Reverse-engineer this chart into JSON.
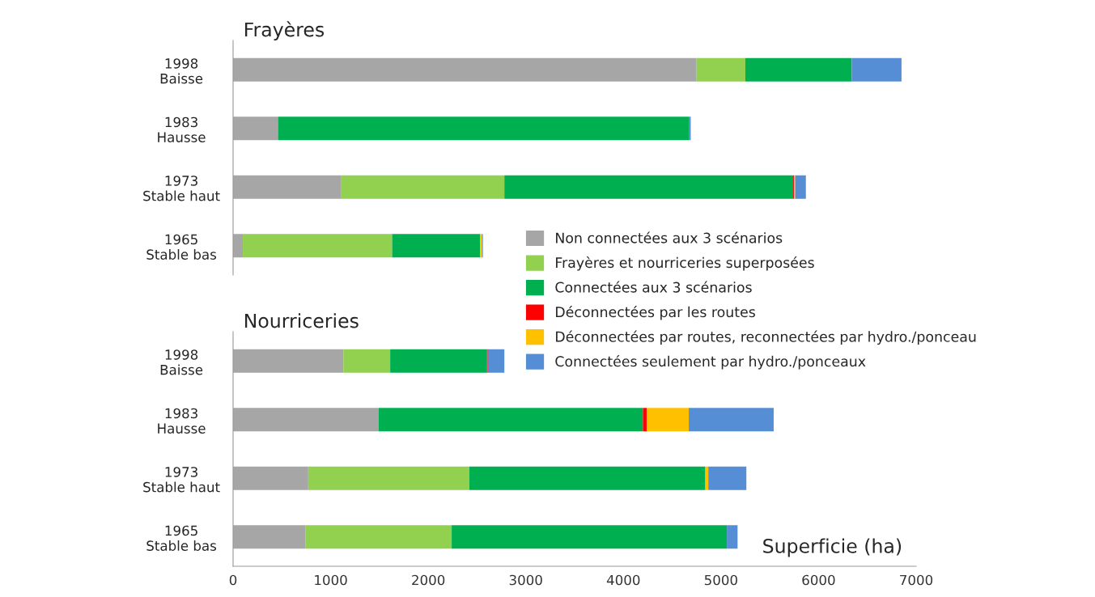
{
  "chart_data": [
    {
      "type": "bar",
      "orientation": "horizontal",
      "stacked": true,
      "title": "Frayères",
      "categories": [
        "1998\nBaisse",
        "1983\nHausse",
        "1973\nStable haut",
        "1965\nStable bas"
      ],
      "series": [
        {
          "name": "Non connectées aux 3 scénarios",
          "color": "#a6a6a6",
          "values": [
            4750,
            460,
            1110,
            100
          ]
        },
        {
          "name": "Frayères et nourriceries superposées",
          "color": "#92d050",
          "values": [
            500,
            null,
            1670,
            1530
          ]
        },
        {
          "name": "Connectées aux 3 scénarios",
          "color": "#00b050",
          "values": [
            1090,
            4210,
            2960,
            900
          ]
        },
        {
          "name": "Déconnectées par les routes",
          "color": "#ff0000",
          "values": [
            null,
            null,
            10,
            null
          ]
        },
        {
          "name": "Déconnectées par routes, reconnectées par hydro./ponceau",
          "color": "#ffc000",
          "values": [
            null,
            null,
            10,
            20
          ]
        },
        {
          "name": "Connectées seulement par hydro./ponceaux",
          "color": "#558ed5",
          "values": [
            510,
            20,
            110,
            10
          ]
        }
      ],
      "xlim": [
        0,
        7000
      ],
      "xticks": [
        0,
        1000,
        2000,
        3000,
        4000,
        5000,
        6000,
        7000
      ],
      "tick_labels": "y",
      "legend": "bottom right"
    },
    {
      "type": "bar",
      "orientation": "horizontal",
      "stacked": true,
      "title": "Nourriceries",
      "xlabel": "Superficie (ha)",
      "categories": [
        "1998\nBaisse",
        "1983\nHausse",
        "1973\nStable haut",
        "1965\nStable bas"
      ],
      "series": [
        {
          "color": "#a6a6a6",
          "values": [
            1130,
            1490,
            770,
            740
          ]
        },
        {
          "color": "#92d050",
          "values": [
            480,
            null,
            1650,
            1500
          ]
        },
        {
          "color": "#00b050",
          "values": [
            990,
            2710,
            2420,
            2820
          ]
        },
        {
          "color": "#ff0000",
          "values": [
            10,
            40,
            null,
            null
          ]
        },
        {
          "color": "#ffc000",
          "values": [
            null,
            430,
            30,
            null
          ]
        },
        {
          "color": "#558ed5",
          "values": [
            170,
            870,
            390,
            110
          ]
        }
      ],
      "xlim": [
        0,
        7000
      ],
      "xticks": [
        0,
        1000,
        2000,
        3000,
        4000,
        5000,
        6000,
        7000
      ]
    }
  ]
}
